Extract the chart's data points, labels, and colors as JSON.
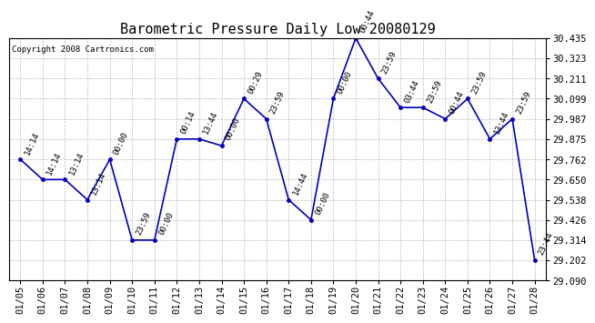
{
  "title": "Barometric Pressure Daily Low 20080129",
  "copyright": "Copyright 2008 Cartronics.com",
  "dates": [
    "01/05",
    "01/06",
    "01/07",
    "01/08",
    "01/09",
    "01/10",
    "01/11",
    "01/12",
    "01/13",
    "01/14",
    "01/15",
    "01/16",
    "01/17",
    "01/18",
    "01/19",
    "01/20",
    "01/21",
    "01/22",
    "01/23",
    "01/24",
    "01/25",
    "01/26",
    "01/27",
    "01/28"
  ],
  "values": [
    29.762,
    29.65,
    29.65,
    29.538,
    29.762,
    29.314,
    29.314,
    29.875,
    29.875,
    29.838,
    30.099,
    29.987,
    29.538,
    29.426,
    30.099,
    30.435,
    30.211,
    30.05,
    30.05,
    29.987,
    30.099,
    29.875,
    29.987,
    29.202
  ],
  "labels": [
    "14:14",
    "14:14",
    "13:14",
    "13:14",
    "00:00",
    "23:59",
    "00:00",
    "00:14",
    "13:44",
    "00:00",
    "00:29",
    "23:59",
    "14:44",
    "00:00",
    "00:00",
    "00:44",
    "23:59",
    "03:44",
    "23:59",
    "00:44",
    "23:59",
    "13:44",
    "23:59",
    "23:44"
  ],
  "line_color": "#0000bb",
  "marker_color": "#0000bb",
  "background_color": "#ffffff",
  "grid_color": "#bbbbbb",
  "ylim": [
    29.09,
    30.435
  ],
  "yticks": [
    29.09,
    29.202,
    29.314,
    29.426,
    29.538,
    29.65,
    29.762,
    29.875,
    29.987,
    30.099,
    30.211,
    30.323,
    30.435
  ],
  "title_fontsize": 11,
  "label_fontsize": 6.5,
  "tick_fontsize": 7.5,
  "copyright_fontsize": 6.5
}
